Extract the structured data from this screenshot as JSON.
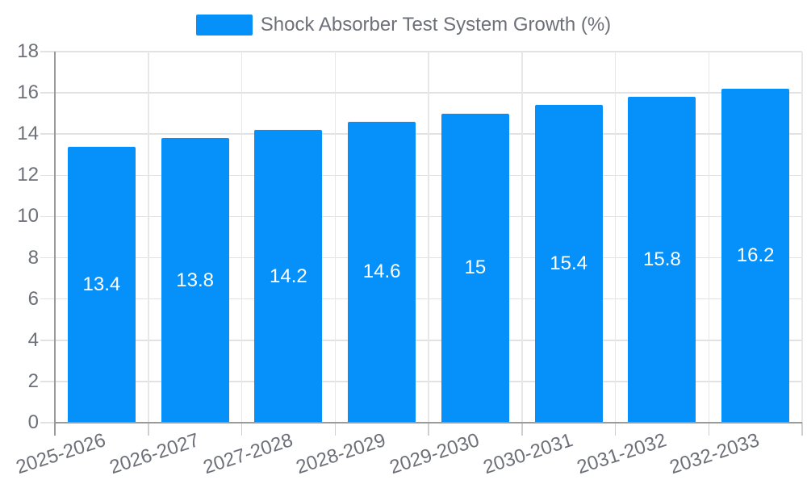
{
  "chart_data": {
    "type": "bar",
    "title": "",
    "legend_label": "Shock Absorber Test System Growth (%)",
    "legend_position": "top",
    "categories": [
      "2025-2026",
      "2026-2027",
      "2027-2028",
      "2028-2029",
      "2029-2030",
      "2030-2031",
      "2031-2032",
      "2032-2033"
    ],
    "values": [
      13.4,
      13.8,
      14.2,
      14.6,
      15,
      15.4,
      15.8,
      16.2
    ],
    "bar_labels": [
      "13.4",
      "13.8",
      "14.2",
      "14.6",
      "15",
      "15.4",
      "15.8",
      "16.2"
    ],
    "xlabel": "",
    "ylabel": "",
    "ylim": [
      0,
      18
    ],
    "yticks": [
      0,
      2,
      4,
      6,
      8,
      10,
      12,
      14,
      16,
      18
    ],
    "grid": true,
    "bar_label_position": "inside-center",
    "x_label_rotation_deg": -18,
    "bar_color": "#0690fa",
    "colors": {
      "grid_line": "#e2e2e2",
      "axis_line": "#9a9a9a",
      "tick_label": "#6e7079",
      "bar_label": "#ffffff",
      "background": "#ffffff"
    }
  }
}
